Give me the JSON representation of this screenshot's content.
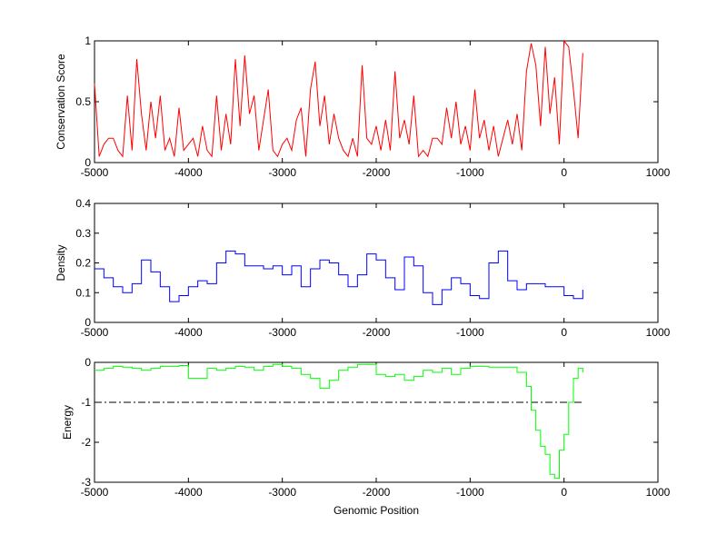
{
  "chart_data": [
    {
      "type": "line",
      "title": "",
      "xlabel": "",
      "ylabel": "Conservation Score",
      "xlim": [
        -5000,
        1000
      ],
      "ylim": [
        0,
        1
      ],
      "xticks": [
        "-5000",
        "-4000",
        "-3000",
        "-2000",
        "-1000",
        "0",
        "1000"
      ],
      "yticks": [
        "0",
        "0.5",
        "1"
      ],
      "color": "#ff0000",
      "series": [
        {
          "name": "conservation",
          "x": [
            -5000,
            -4950,
            -4900,
            -4850,
            -4800,
            -4750,
            -4700,
            -4650,
            -4600,
            -4550,
            -4500,
            -4450,
            -4400,
            -4350,
            -4300,
            -4250,
            -4200,
            -4150,
            -4100,
            -4050,
            -4000,
            -3950,
            -3900,
            -3850,
            -3800,
            -3750,
            -3700,
            -3650,
            -3600,
            -3550,
            -3500,
            -3450,
            -3400,
            -3350,
            -3300,
            -3250,
            -3200,
            -3150,
            -3100,
            -3050,
            -3000,
            -2950,
            -2900,
            -2850,
            -2800,
            -2750,
            -2700,
            -2650,
            -2600,
            -2550,
            -2500,
            -2450,
            -2400,
            -2350,
            -2300,
            -2250,
            -2200,
            -2150,
            -2100,
            -2050,
            -2000,
            -1950,
            -1900,
            -1850,
            -1800,
            -1750,
            -1700,
            -1650,
            -1600,
            -1550,
            -1500,
            -1450,
            -1400,
            -1350,
            -1300,
            -1250,
            -1200,
            -1150,
            -1100,
            -1050,
            -1000,
            -950,
            -900,
            -850,
            -800,
            -750,
            -700,
            -650,
            -600,
            -550,
            -500,
            -450,
            -400,
            -350,
            -300,
            -250,
            -200,
            -150,
            -100,
            -50,
            0,
            50,
            100,
            150,
            200
          ],
          "values": [
            0.65,
            0.05,
            0.15,
            0.2,
            0.2,
            0.1,
            0.05,
            0.55,
            0.1,
            0.85,
            0.4,
            0.1,
            0.5,
            0.2,
            0.55,
            0.1,
            0.2,
            0.05,
            0.45,
            0.1,
            0.15,
            0.2,
            0.05,
            0.3,
            0.1,
            0.05,
            0.55,
            0.1,
            0.4,
            0.15,
            0.85,
            0.3,
            0.88,
            0.4,
            0.55,
            0.1,
            0.35,
            0.6,
            0.1,
            0.05,
            0.15,
            0.2,
            0.1,
            0.35,
            0.45,
            0.05,
            0.6,
            0.83,
            0.3,
            0.55,
            0.15,
            0.4,
            0.2,
            0.1,
            0.05,
            0.2,
            0.05,
            0.8,
            0.2,
            0.15,
            0.3,
            0.1,
            0.35,
            0.1,
            0.75,
            0.2,
            0.35,
            0.15,
            0.55,
            0.05,
            0.1,
            0.05,
            0.2,
            0.2,
            0.15,
            0.45,
            0.2,
            0.5,
            0.15,
            0.3,
            0.1,
            0.6,
            0.2,
            0.35,
            0.1,
            0.3,
            0.05,
            0.2,
            0.35,
            0.15,
            0.4,
            0.1,
            0.75,
            0.98,
            0.8,
            0.3,
            0.95,
            0.4,
            0.7,
            0.15,
            1.0,
            0.95,
            0.6,
            0.2,
            0.9
          ]
        }
      ]
    },
    {
      "type": "line",
      "title": "",
      "xlabel": "",
      "ylabel": "Density",
      "xlim": [
        -5000,
        1000
      ],
      "ylim": [
        0,
        0.4
      ],
      "xticks": [
        "-5000",
        "-4000",
        "-3000",
        "-2000",
        "-1000",
        "0",
        "1000"
      ],
      "yticks": [
        "0",
        "0.1",
        "0.2",
        "0.3",
        "0.4"
      ],
      "color": "#0000ff",
      "series": [
        {
          "name": "density",
          "x": [
            -5000,
            -4900,
            -4800,
            -4700,
            -4600,
            -4500,
            -4400,
            -4300,
            -4200,
            -4100,
            -4000,
            -3900,
            -3800,
            -3700,
            -3600,
            -3500,
            -3400,
            -3300,
            -3200,
            -3100,
            -3000,
            -2900,
            -2800,
            -2700,
            -2600,
            -2500,
            -2400,
            -2300,
            -2200,
            -2100,
            -2000,
            -1900,
            -1800,
            -1700,
            -1600,
            -1500,
            -1400,
            -1300,
            -1200,
            -1100,
            -1000,
            -900,
            -800,
            -700,
            -600,
            -500,
            -400,
            -300,
            -200,
            -100,
            0,
            100,
            200
          ],
          "values": [
            0.18,
            0.15,
            0.12,
            0.1,
            0.13,
            0.21,
            0.17,
            0.12,
            0.07,
            0.09,
            0.12,
            0.14,
            0.13,
            0.2,
            0.24,
            0.23,
            0.19,
            0.19,
            0.18,
            0.19,
            0.16,
            0.19,
            0.12,
            0.18,
            0.21,
            0.2,
            0.16,
            0.12,
            0.16,
            0.23,
            0.21,
            0.15,
            0.11,
            0.22,
            0.19,
            0.1,
            0.06,
            0.11,
            0.15,
            0.13,
            0.09,
            0.08,
            0.2,
            0.24,
            0.14,
            0.11,
            0.13,
            0.13,
            0.12,
            0.12,
            0.09,
            0.08,
            0.11
          ]
        }
      ]
    },
    {
      "type": "line",
      "title": "",
      "xlabel": "Genomic Position",
      "ylabel": "Energy",
      "xlim": [
        -5000,
        1000
      ],
      "ylim": [
        -3,
        0
      ],
      "xticks": [
        "-5000",
        "-4000",
        "-3000",
        "-2000",
        "-1000",
        "0",
        "1000"
      ],
      "yticks": [
        "-3",
        "-2",
        "-1",
        "0"
      ],
      "color": "#00ff00",
      "threshold": -1,
      "series": [
        {
          "name": "energy",
          "x": [
            -5000,
            -4900,
            -4800,
            -4700,
            -4600,
            -4500,
            -4400,
            -4300,
            -4200,
            -4100,
            -4000,
            -3900,
            -3800,
            -3700,
            -3600,
            -3500,
            -3400,
            -3300,
            -3200,
            -3100,
            -3000,
            -2900,
            -2800,
            -2700,
            -2600,
            -2500,
            -2400,
            -2300,
            -2200,
            -2100,
            -2000,
            -1900,
            -1800,
            -1700,
            -1600,
            -1500,
            -1400,
            -1300,
            -1200,
            -1100,
            -1000,
            -900,
            -800,
            -700,
            -600,
            -500,
            -400,
            -350,
            -300,
            -250,
            -200,
            -150,
            -100,
            -50,
            0,
            50,
            100,
            150,
            200
          ],
          "values": [
            -0.2,
            -0.15,
            -0.1,
            -0.12,
            -0.15,
            -0.2,
            -0.15,
            -0.1,
            -0.1,
            -0.08,
            -0.4,
            -0.4,
            -0.15,
            -0.2,
            -0.15,
            -0.1,
            -0.12,
            -0.2,
            -0.1,
            -0.05,
            -0.1,
            -0.15,
            -0.3,
            -0.4,
            -0.65,
            -0.45,
            -0.2,
            -0.12,
            -0.05,
            -0.05,
            -0.3,
            -0.35,
            -0.3,
            -0.45,
            -0.35,
            -0.2,
            -0.25,
            -0.15,
            -0.3,
            -0.15,
            -0.1,
            -0.1,
            -0.12,
            -0.12,
            -0.12,
            -0.25,
            -0.6,
            -1.2,
            -1.7,
            -2.1,
            -2.3,
            -2.8,
            -2.9,
            -2.2,
            -1.8,
            -1.0,
            -0.4,
            -0.15,
            -0.25
          ]
        }
      ]
    }
  ]
}
